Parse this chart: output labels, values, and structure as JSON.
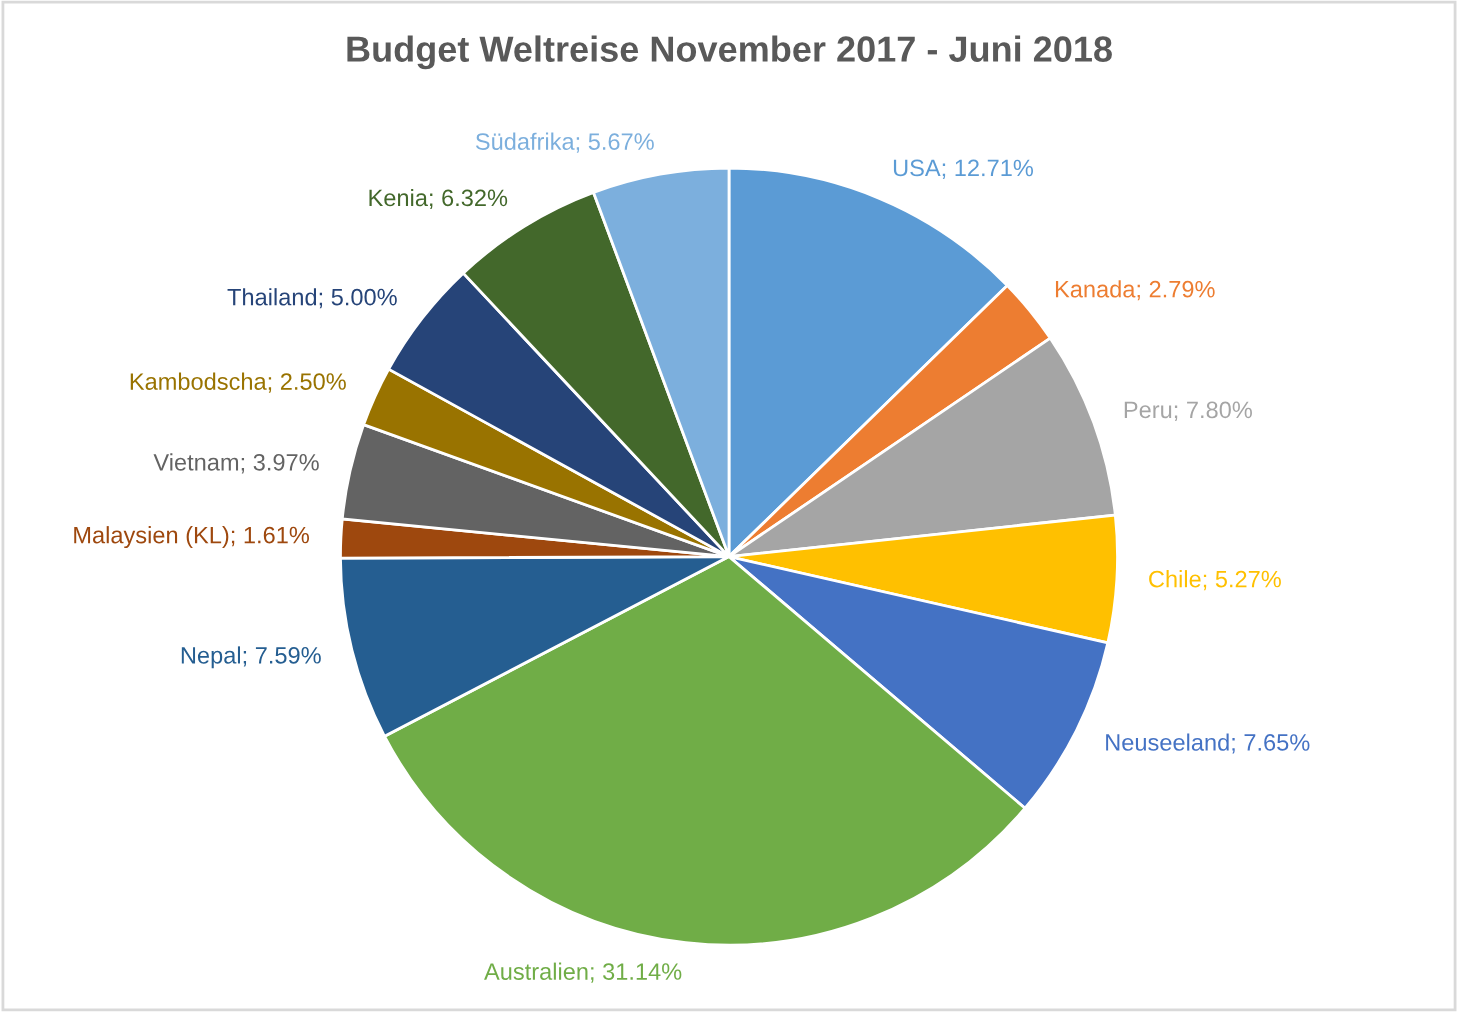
{
  "chart_data": {
    "type": "pie",
    "title": "Budget Weltreise November 2017 - Juni 2018",
    "categories": [
      "USA",
      "Kanada",
      "Peru",
      "Chile",
      "Neuseeland",
      "Australien",
      "Nepal",
      "Malaysien (KL)",
      "Vietnam",
      "Kambodscha",
      "Thailand",
      "Kenia",
      "Südafrika"
    ],
    "values": [
      12.71,
      2.79,
      7.8,
      5.27,
      7.65,
      31.14,
      7.59,
      1.61,
      3.97,
      2.5,
      5.0,
      6.32,
      5.67
    ],
    "value_labels": [
      "12.71%",
      "2.79%",
      "7.80%",
      "5.27%",
      "7.65%",
      "31.14%",
      "7.59%",
      "1.61%",
      "3.97%",
      "2.50%",
      "5.00%",
      "6.32%",
      "5.67%"
    ],
    "colors": [
      "#5b9bd5",
      "#ed7d31",
      "#a5a5a5",
      "#ffc000",
      "#4472c4",
      "#70ad47",
      "#255e91",
      "#9e480e",
      "#636363",
      "#997300",
      "#264478",
      "#43682b",
      "#7cafdd"
    ],
    "legend": false
  }
}
